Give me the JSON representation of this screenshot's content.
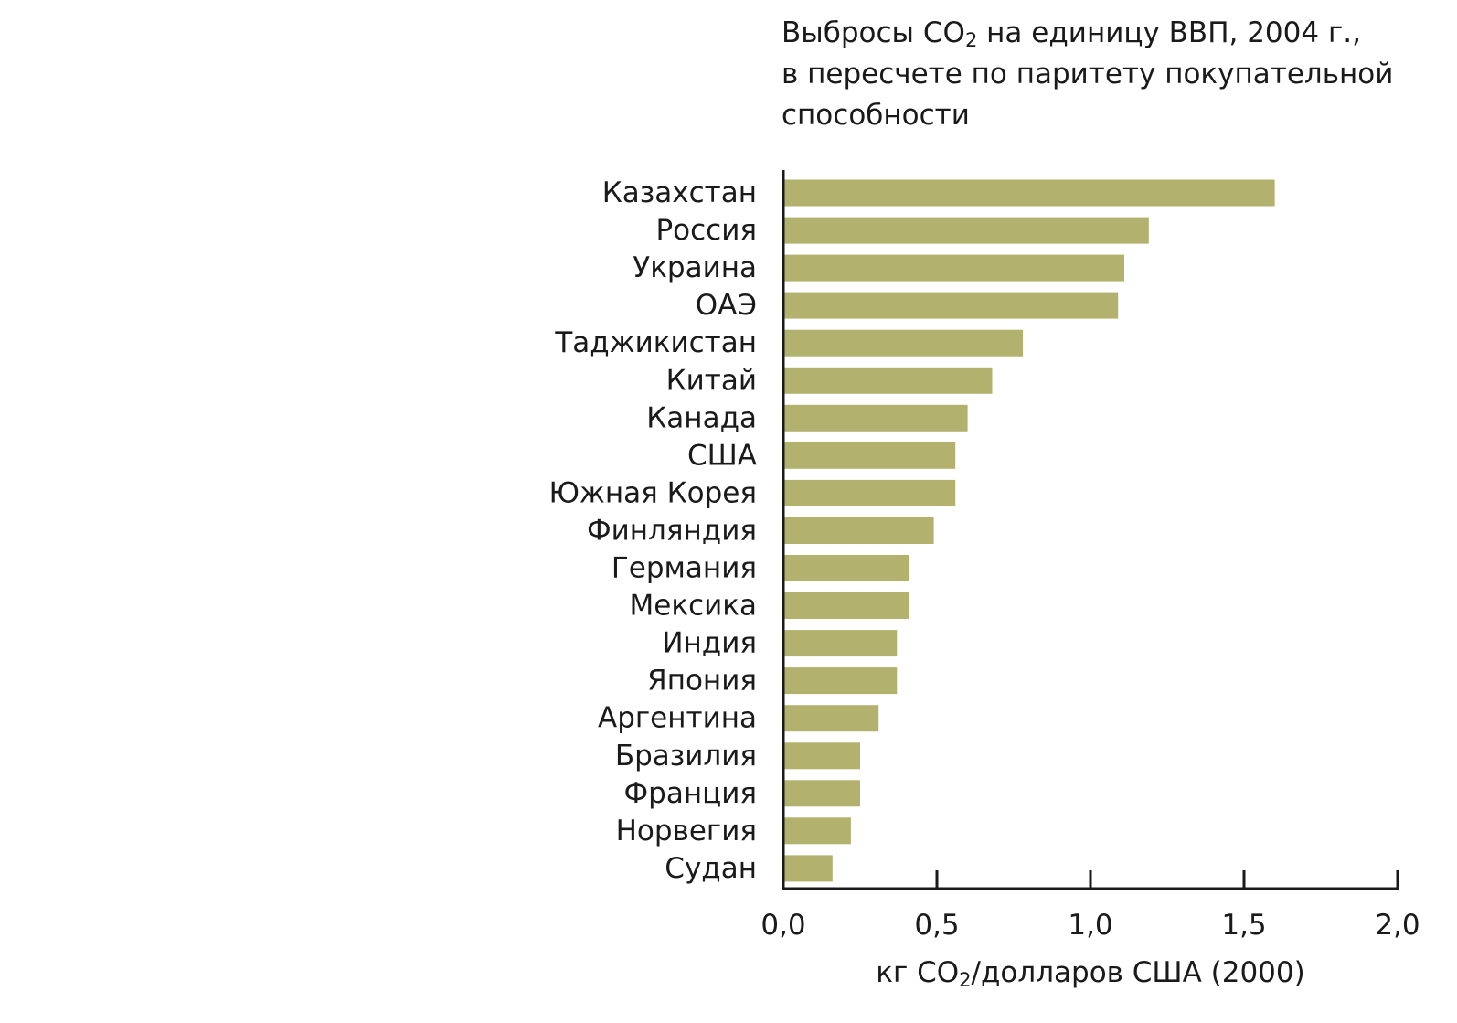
{
  "colors": {
    "bar": "#b2b26e",
    "axis": "#1a1a1a"
  },
  "chart_data": {
    "type": "bar",
    "orientation": "horizontal",
    "title": {
      "line1_before": "Выбросы СО",
      "line1_sub": "2",
      "line1_after": " на единицу ВВП, 2004 г.,",
      "line2": "в пересчете по паритету покупательной",
      "line3": "способности"
    },
    "xlabel": {
      "before": "кг СО",
      "sub": "2",
      "after": "/долларов США (2000)"
    },
    "categories": [
      "Казахстан",
      "Россия",
      "Украина",
      "ОАЭ",
      "Таджикистан",
      "Китай",
      "Канада",
      "США",
      "Южная Корея",
      "Финляндия",
      "Германия",
      "Мексика",
      "Индия",
      "Япония",
      "Аргентина",
      "Бразилия",
      "Франция",
      "Норвегия",
      "Судан"
    ],
    "values": [
      1.6,
      1.19,
      1.11,
      1.09,
      0.78,
      0.68,
      0.6,
      0.56,
      0.56,
      0.49,
      0.41,
      0.41,
      0.37,
      0.37,
      0.31,
      0.25,
      0.25,
      0.22,
      0.16
    ],
    "xlim": [
      0,
      2.0
    ],
    "xticks": [
      0,
      0.5,
      1.0,
      1.5,
      2.0
    ],
    "xtick_labels": [
      "0,0",
      "0,5",
      "1,0",
      "1,5",
      "2,0"
    ],
    "grid": false,
    "legend": "none"
  }
}
